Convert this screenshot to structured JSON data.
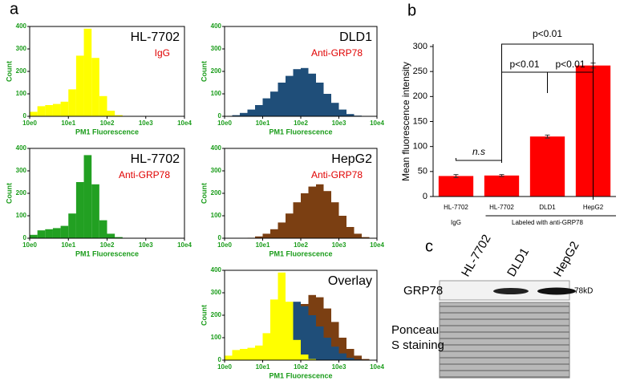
{
  "panel_labels": [
    "a",
    "b",
    "c"
  ],
  "chart_data": [
    {
      "type": "histogram",
      "title": "HL-7702",
      "subtitle": "IgG",
      "xlabel": "PM1 Fluorescence",
      "ylabel": "Count",
      "bins": [
        0,
        0.2,
        0.4,
        0.6,
        0.8,
        1,
        1.2,
        1.4,
        1.6,
        1.8,
        2,
        2.2,
        2.4,
        2.6,
        2.8,
        3,
        3.2,
        3.4,
        3.6,
        3.8,
        4
      ],
      "series": [
        {
          "color": "#ffff00",
          "values": [
            20,
            45,
            50,
            55,
            65,
            120,
            270,
            390,
            260,
            90,
            25,
            5,
            0,
            0,
            0,
            0,
            0,
            0,
            0,
            0
          ]
        }
      ],
      "xlim": [
        0,
        4
      ],
      "xticks": [
        {
          "value": 0,
          "label": "10e0"
        },
        {
          "value": 1,
          "label": "10e1"
        },
        {
          "value": 2,
          "label": "10e2"
        },
        {
          "value": 3,
          "label": "10e3"
        },
        {
          "value": 4,
          "label": "10e4"
        }
      ],
      "ylim": [
        0,
        400
      ],
      "yticks": [
        0,
        100,
        200,
        300,
        400
      ]
    },
    {
      "type": "histogram",
      "title": "DLD1",
      "subtitle": "Anti-GRP78",
      "xlabel": "PM1 Fluorescence",
      "ylabel": "Count",
      "bins": [
        0,
        0.2,
        0.4,
        0.6,
        0.8,
        1,
        1.2,
        1.4,
        1.6,
        1.8,
        2,
        2.2,
        2.4,
        2.6,
        2.8,
        3,
        3.2,
        3.4,
        3.6,
        3.8,
        4
      ],
      "series": [
        {
          "color": "#1f4e79",
          "values": [
            0,
            5,
            15,
            30,
            50,
            80,
            110,
            150,
            180,
            210,
            215,
            190,
            150,
            100,
            60,
            30,
            10,
            3,
            0,
            0
          ]
        }
      ],
      "xlim": [
        0,
        4
      ],
      "xticks": [
        {
          "value": 0,
          "label": "10e0"
        },
        {
          "value": 1,
          "label": "10e1"
        },
        {
          "value": 2,
          "label": "10e2"
        },
        {
          "value": 3,
          "label": "10e3"
        },
        {
          "value": 4,
          "label": "10e4"
        }
      ],
      "ylim": [
        0,
        400
      ],
      "yticks": [
        0,
        100,
        200,
        300,
        400
      ]
    },
    {
      "type": "histogram",
      "title": "HL-7702",
      "subtitle": "Anti-GRP78",
      "xlabel": "PM1 Fluorescence",
      "ylabel": "Count",
      "bins": [
        0,
        0.2,
        0.4,
        0.6,
        0.8,
        1,
        1.2,
        1.4,
        1.6,
        1.8,
        2,
        2.2,
        2.4,
        2.6,
        2.8,
        3,
        3.2,
        3.4,
        3.6,
        3.8,
        4
      ],
      "series": [
        {
          "color": "#22a022",
          "values": [
            15,
            35,
            40,
            45,
            55,
            110,
            250,
            370,
            240,
            80,
            20,
            5,
            0,
            0,
            0,
            0,
            0,
            0,
            0,
            0
          ]
        }
      ],
      "xlim": [
        0,
        4
      ],
      "xticks": [
        {
          "value": 0,
          "label": "10e0"
        },
        {
          "value": 1,
          "label": "10e1"
        },
        {
          "value": 2,
          "label": "10e2"
        },
        {
          "value": 3,
          "label": "10e3"
        },
        {
          "value": 4,
          "label": "10e4"
        }
      ],
      "ylim": [
        0,
        400
      ],
      "yticks": [
        0,
        100,
        200,
        300,
        400
      ]
    },
    {
      "type": "histogram",
      "title": "HepG2",
      "subtitle": "Anti-GRP78",
      "xlabel": "PM1 Fluorescence",
      "ylabel": "Count",
      "bins": [
        0,
        0.2,
        0.4,
        0.6,
        0.8,
        1,
        1.2,
        1.4,
        1.6,
        1.8,
        2,
        2.2,
        2.4,
        2.6,
        2.8,
        3,
        3.2,
        3.4,
        3.6,
        3.8,
        4
      ],
      "series": [
        {
          "color": "#7b3f12",
          "values": [
            0,
            0,
            0,
            2,
            8,
            20,
            40,
            70,
            110,
            160,
            200,
            230,
            240,
            210,
            160,
            100,
            50,
            20,
            5,
            0
          ]
        }
      ],
      "xlim": [
        0,
        4
      ],
      "xticks": [
        {
          "value": 0,
          "label": "10e0"
        },
        {
          "value": 1,
          "label": "10e1"
        },
        {
          "value": 2,
          "label": "10e2"
        },
        {
          "value": 3,
          "label": "10e3"
        },
        {
          "value": 4,
          "label": "10e4"
        }
      ],
      "ylim": [
        0,
        400
      ],
      "yticks": [
        0,
        100,
        200,
        300,
        400
      ]
    },
    {
      "type": "histogram",
      "title": "Overlay",
      "xlabel": "PM1 Fluorescence",
      "ylabel": "Count",
      "bins": [
        0,
        0.2,
        0.4,
        0.6,
        0.8,
        1,
        1.2,
        1.4,
        1.6,
        1.8,
        2,
        2.2,
        2.4,
        2.6,
        2.8,
        3,
        3.2,
        3.4,
        3.6,
        3.8,
        4
      ],
      "series": [
        {
          "color": "#7b3f12",
          "values": [
            0,
            0,
            0,
            2,
            8,
            20,
            40,
            70,
            110,
            180,
            250,
            290,
            280,
            230,
            170,
            100,
            50,
            20,
            5,
            0
          ]
        },
        {
          "color": "#1f4e79",
          "values": [
            0,
            5,
            15,
            30,
            50,
            80,
            110,
            160,
            220,
            260,
            240,
            200,
            150,
            100,
            60,
            30,
            10,
            3,
            0,
            0
          ]
        },
        {
          "color": "#ffff00",
          "values": [
            20,
            45,
            50,
            55,
            65,
            120,
            270,
            390,
            260,
            90,
            25,
            5,
            0,
            0,
            0,
            0,
            0,
            0,
            0,
            0
          ]
        }
      ],
      "xlim": [
        0,
        4
      ],
      "xticks": [
        {
          "value": 0,
          "label": "10e0"
        },
        {
          "value": 1,
          "label": "10e1"
        },
        {
          "value": 2,
          "label": "10e2"
        },
        {
          "value": 3,
          "label": "10e3"
        },
        {
          "value": 4,
          "label": "10e4"
        }
      ],
      "ylim": [
        0,
        400
      ],
      "yticks": [
        0,
        100,
        200,
        300,
        400
      ]
    },
    {
      "type": "bar",
      "ylabel": "Mean fluorescence intensity",
      "categories": [
        "HL-7702",
        "HL-7702",
        "DLD1",
        "HepG2"
      ],
      "values": [
        41,
        42,
        120,
        262
      ],
      "errors": [
        3,
        2,
        3,
        5
      ],
      "color": "#ff0000",
      "group_labels": [
        "IgG",
        "Labeled with anti-GRP78"
      ],
      "annotations": [
        "n.s",
        "p<0.01",
        "p<0.01",
        "p<0.01"
      ],
      "ylim": [
        0,
        300
      ],
      "yticks": [
        0,
        50,
        100,
        150,
        200,
        250,
        300
      ]
    }
  ],
  "blot": {
    "lanes": [
      "HL-7702",
      "DLD1",
      "HepG2"
    ],
    "protein": "GRP78",
    "size": "78kD",
    "loading": "Ponceau S staining"
  }
}
